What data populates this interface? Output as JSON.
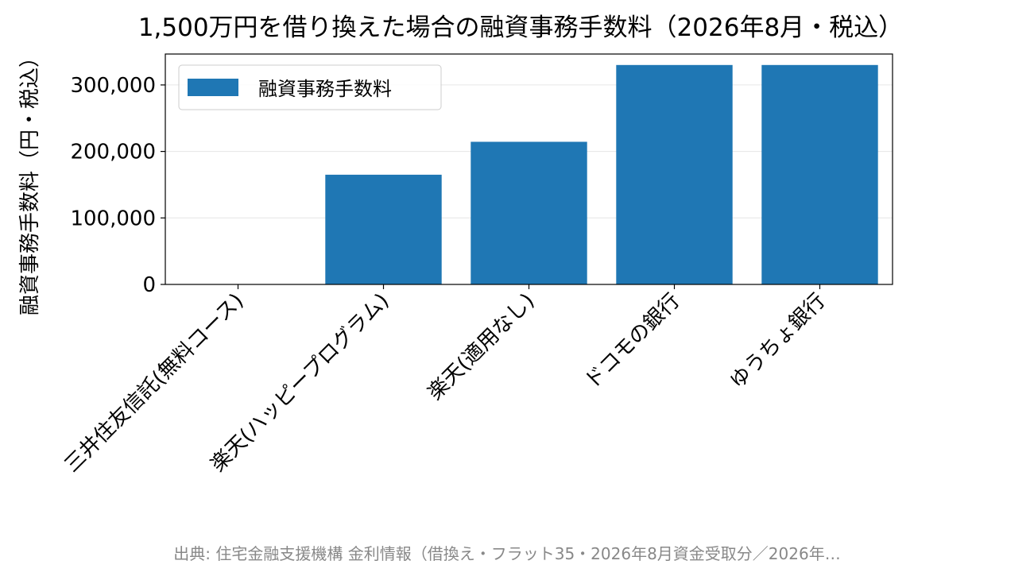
{
  "chart_data": {
    "type": "bar",
    "title": "1,500万円を借り換えた場合の融資事務手数料（2026年8月・税込）",
    "xlabel": "",
    "ylabel": "融資事務手数料（円・税込）",
    "categories": [
      "三井住友信託(無料コース)",
      "楽天(ハッピープログラム)",
      "楽天(適用なし)",
      "ドコモの銀行",
      "ゆうちょ銀行"
    ],
    "series": [
      {
        "name": "融資事務手数料",
        "values": [
          0,
          165000,
          214500,
          330000,
          330000
        ]
      }
    ],
    "ylim": [
      0,
      346500
    ],
    "yticks": [
      0,
      100000,
      200000,
      300000
    ],
    "ytick_labels": [
      "0",
      "100,000",
      "200,000",
      "300,000"
    ],
    "grid": "y",
    "legend_position": "upper left",
    "colors": {
      "bar": "#1f77b4",
      "grid": "#e6e6e6",
      "source": "#888888"
    }
  },
  "source_note": "出典: 住宅金融支援機構 金利情報（借換え・フラット35・2026年8月資金受取分／2026年…"
}
